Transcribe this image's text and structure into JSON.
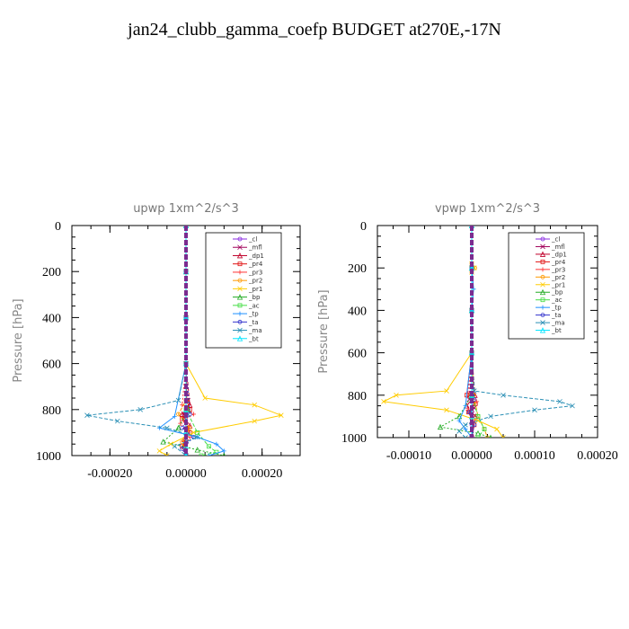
{
  "page": {
    "title": "jan24_clubb_gamma_coefp  BUDGET at270E,-17N"
  },
  "chart_data": [
    {
      "type": "line",
      "title": "upwp   1xm^2/s^3",
      "ylabel": "Pressure [hPa]",
      "xlabel": "",
      "xlim": [
        -0.0003,
        0.0003
      ],
      "ylim": [
        1000,
        0
      ],
      "xticks": [
        -0.0002,
        0.0,
        0.0002
      ],
      "xtick_labels": [
        "-0.00020",
        "0.00000",
        "0.00020"
      ],
      "yticks": [
        0,
        200,
        400,
        600,
        800,
        1000
      ],
      "ytick_labels": [
        "0",
        "200",
        "400",
        "600",
        "800",
        "1000"
      ],
      "legend_position": "top-right",
      "series": [
        {
          "name": "_cl",
          "color": "#8a2be2",
          "x": [
            0,
            0,
            0,
            0,
            0,
            0,
            0,
            0,
            0
          ],
          "y": [
            0,
            200,
            400,
            600,
            760,
            820,
            880,
            940,
            1000
          ]
        },
        {
          "name": "_mfl",
          "color": "#a0005a",
          "x": [
            0,
            0,
            0,
            0,
            5e-06,
            -5e-06,
            5e-06,
            0,
            0
          ],
          "y": [
            0,
            200,
            400,
            600,
            760,
            820,
            880,
            940,
            1000
          ]
        },
        {
          "name": "_dp1",
          "color": "#c0002a",
          "x": [
            0,
            0,
            0,
            0,
            1e-05,
            -1e-05,
            1e-05,
            -5e-06,
            0
          ],
          "y": [
            0,
            200,
            400,
            600,
            780,
            820,
            870,
            930,
            1000
          ]
        },
        {
          "name": "_pr4",
          "color": "#e01010",
          "x": [
            0,
            0,
            0,
            0,
            2e-06,
            1e-05,
            -1e-05,
            1e-05,
            -1e-05,
            0
          ],
          "y": [
            0,
            200,
            400,
            600,
            760,
            800,
            840,
            900,
            960,
            1000
          ]
        },
        {
          "name": "_pr3",
          "color": "#ff3333",
          "x": [
            0,
            0,
            0,
            0,
            -1e-05,
            2e-05,
            -1.5e-05,
            1e-05,
            -5e-06,
            0
          ],
          "y": [
            0,
            200,
            400,
            600,
            780,
            820,
            860,
            920,
            970,
            1000
          ]
        },
        {
          "name": "_pr2",
          "color": "#ff9900",
          "x": [
            0,
            0,
            0,
            0,
            0,
            -2e-05,
            1e-05,
            -1e-05,
            0
          ],
          "y": [
            0,
            200,
            400,
            600,
            760,
            820,
            880,
            940,
            1000
          ]
        },
        {
          "name": "_pr1",
          "color": "#ffcc00",
          "x": [
            0,
            0,
            0,
            0,
            5e-05,
            0.00018,
            0.00025,
            0.00018,
            2e-05,
            -4e-05,
            -7e-05,
            -5e-05
          ],
          "y": [
            0,
            200,
            400,
            600,
            750,
            780,
            825,
            850,
            900,
            950,
            980,
            1000
          ]
        },
        {
          "name": "_bp",
          "color": "#22aa22",
          "x": [
            0,
            0,
            0,
            0,
            5e-06,
            -2e-05,
            -6e-05,
            3e-05,
            0.0001
          ],
          "y": [
            0,
            200,
            400,
            600,
            800,
            880,
            940,
            975,
            1000
          ]
        },
        {
          "name": "_ac",
          "color": "#44dd44",
          "x": [
            0,
            0,
            0,
            0,
            0,
            3e-05,
            6e-05,
            8e-05,
            4e-05
          ],
          "y": [
            0,
            200,
            400,
            600,
            800,
            900,
            960,
            985,
            1000
          ]
        },
        {
          "name": "_tp",
          "color": "#1e90ff",
          "x": [
            0,
            0,
            0,
            0,
            -3e-05,
            -7e-05,
            3e-05,
            8e-05,
            0.0001,
            6e-05
          ],
          "y": [
            0,
            200,
            400,
            600,
            830,
            880,
            920,
            950,
            980,
            1000
          ]
        },
        {
          "name": "_ta",
          "color": "#3333cc",
          "x": [
            0,
            0,
            0,
            0,
            1e-05,
            -1e-05,
            2e-05,
            -1e-05,
            0
          ],
          "y": [
            0,
            200,
            400,
            600,
            820,
            880,
            920,
            970,
            1000
          ]
        },
        {
          "name": "_ma",
          "color": "#2a8fb5",
          "x": [
            0,
            0,
            0,
            0,
            -2e-05,
            -0.00012,
            -0.00026,
            -0.00018,
            -5e-05,
            3e-05,
            -3e-05,
            0
          ],
          "y": [
            0,
            200,
            400,
            600,
            760,
            800,
            825,
            850,
            880,
            920,
            960,
            1000
          ]
        },
        {
          "name": "_bt",
          "color": "#00e5ff",
          "x": [
            0,
            0,
            0,
            0,
            0,
            0,
            0,
            0
          ],
          "y": [
            0,
            200,
            400,
            600,
            800,
            900,
            960,
            1000
          ]
        }
      ]
    },
    {
      "type": "line",
      "title": "vpwp   1xm^2/s^3",
      "ylabel": "Pressure [hPa]",
      "xlabel": "",
      "xlim": [
        -0.00015,
        0.0002
      ],
      "ylim": [
        1000,
        0
      ],
      "xticks": [
        -0.0001,
        0.0,
        0.0001,
        0.0002
      ],
      "xtick_labels": [
        "-0.00010",
        "0.00000",
        "0.00010",
        "0.00020"
      ],
      "yticks": [
        0,
        200,
        400,
        600,
        800,
        1000
      ],
      "ytick_labels": [
        "0",
        "200",
        "400",
        "600",
        "800",
        "1000"
      ],
      "legend_position": "top-right",
      "series": [
        {
          "name": "_cl",
          "color": "#8a2be2",
          "x": [
            0,
            0,
            0,
            0,
            0,
            0,
            0,
            0
          ],
          "y": [
            0,
            200,
            400,
            600,
            800,
            880,
            940,
            1000
          ]
        },
        {
          "name": "_mfl",
          "color": "#a0005a",
          "x": [
            0,
            0,
            0,
            0,
            -4e-06,
            4e-06,
            0,
            0
          ],
          "y": [
            0,
            200,
            400,
            600,
            820,
            860,
            920,
            1000
          ]
        },
        {
          "name": "_dp1",
          "color": "#c0002a",
          "x": [
            0,
            0,
            0,
            0,
            5e-06,
            -8e-06,
            6e-06,
            0
          ],
          "y": [
            0,
            200,
            400,
            600,
            800,
            850,
            900,
            1000
          ]
        },
        {
          "name": "_pr4",
          "color": "#e01010",
          "x": [
            0,
            0,
            0,
            0,
            -8e-06,
            6e-06,
            -5e-06,
            4e-06,
            0
          ],
          "y": [
            0,
            200,
            400,
            600,
            800,
            840,
            880,
            940,
            1000
          ]
        },
        {
          "name": "_pr3",
          "color": "#ff3333",
          "x": [
            0,
            0,
            0,
            0,
            -6e-06,
            8e-06,
            -6e-06,
            3e-06,
            0
          ],
          "y": [
            0,
            200,
            400,
            600,
            790,
            830,
            870,
            930,
            1000
          ]
        },
        {
          "name": "_pr2",
          "color": "#ff9900",
          "x": [
            0,
            0,
            5e-06,
            0,
            0,
            3e-06,
            1e-05,
            2e-05,
            2.5e-05
          ],
          "y": [
            0,
            180,
            200,
            220,
            600,
            800,
            900,
            960,
            1000
          ]
        },
        {
          "name": "_pr1",
          "color": "#ffcc00",
          "x": [
            0,
            0,
            4e-06,
            0,
            0,
            -4e-05,
            -0.00012,
            -0.00014,
            -4e-05,
            1e-05,
            4e-05,
            5e-05
          ],
          "y": [
            0,
            180,
            200,
            220,
            600,
            780,
            800,
            830,
            870,
            920,
            960,
            1000
          ]
        },
        {
          "name": "_bp",
          "color": "#22aa22",
          "x": [
            0,
            0,
            0,
            0,
            0,
            -2e-05,
            -5e-05,
            1e-05,
            3e-05
          ],
          "y": [
            0,
            200,
            400,
            600,
            800,
            900,
            950,
            980,
            1000
          ]
        },
        {
          "name": "_ac",
          "color": "#44dd44",
          "x": [
            0,
            0,
            0,
            0,
            0,
            1e-05,
            2e-05,
            1e-05
          ],
          "y": [
            0,
            200,
            400,
            600,
            800,
            900,
            960,
            1000
          ]
        },
        {
          "name": "_tp",
          "color": "#1e90ff",
          "x": [
            0,
            0,
            3e-06,
            0,
            0,
            -1e-05,
            -2e-05,
            -1e-05,
            0
          ],
          "y": [
            0,
            200,
            300,
            400,
            600,
            850,
            920,
            960,
            1000
          ]
        },
        {
          "name": "_ta",
          "color": "#3333cc",
          "x": [
            0,
            0,
            0,
            0,
            4e-06,
            -4e-06,
            4e-06,
            0
          ],
          "y": [
            0,
            200,
            400,
            600,
            820,
            880,
            940,
            1000
          ]
        },
        {
          "name": "_ma",
          "color": "#2a8fb5",
          "x": [
            0,
            0,
            0,
            0,
            4e-06,
            5e-05,
            0.00014,
            0.00016,
            0.0001,
            3e-05,
            -1e-05,
            -2e-05,
            -1e-05
          ],
          "y": [
            0,
            200,
            400,
            600,
            780,
            800,
            830,
            850,
            870,
            900,
            940,
            970,
            1000
          ]
        },
        {
          "name": "_bt",
          "color": "#00e5ff",
          "x": [
            0,
            0,
            0,
            0,
            0,
            0,
            0
          ],
          "y": [
            0,
            200,
            400,
            600,
            800,
            900,
            1000
          ]
        }
      ]
    }
  ]
}
